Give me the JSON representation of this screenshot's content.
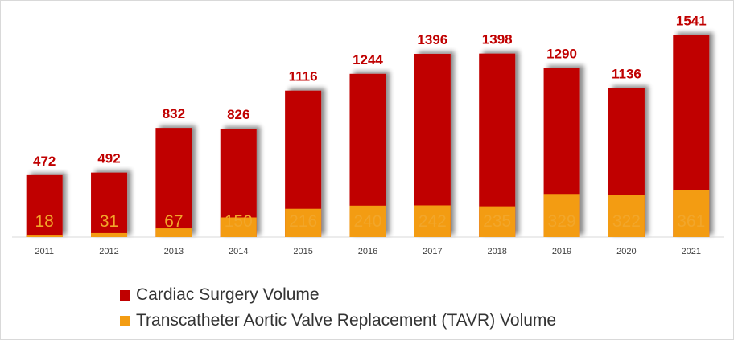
{
  "chart_data": {
    "type": "bar",
    "stacked": false,
    "overlap": true,
    "categories": [
      "2011",
      "2012",
      "2013",
      "2014",
      "2015",
      "2016",
      "2017",
      "2018",
      "2019",
      "2020",
      "2021"
    ],
    "series": [
      {
        "name": "Cardiac Surgery Volume",
        "color": "#c00000",
        "values": [
          472,
          492,
          832,
          826,
          1116,
          1244,
          1396,
          1398,
          1290,
          1136,
          1541
        ]
      },
      {
        "name": "Transcatheter Aortic Valve Replacement (TAVR) Volume",
        "color": "#f39c12",
        "values": [
          18,
          31,
          67,
          150,
          216,
          240,
          242,
          235,
          329,
          322,
          361
        ]
      }
    ],
    "ylim": [
      0,
      1800
    ],
    "grid": false,
    "legend_position": "bottom-left"
  }
}
